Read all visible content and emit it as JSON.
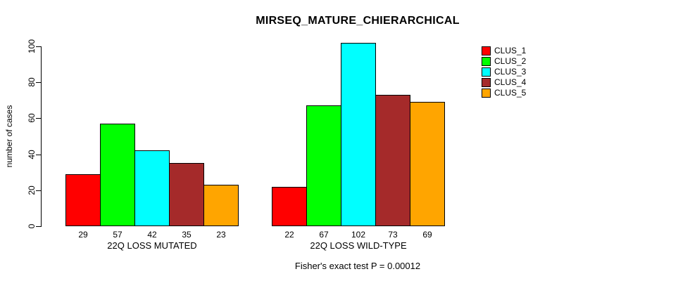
{
  "chart_data": {
    "type": "bar",
    "title": "MIRSEQ_MATURE_CHIERARCHICAL",
    "xlabel": "",
    "ylabel": "number of cases",
    "ylim": [
      0,
      100
    ],
    "yticks": [
      0,
      20,
      40,
      60,
      80,
      100
    ],
    "grid": false,
    "legend_position": "right",
    "categories": [
      "22Q LOSS MUTATED",
      "22Q LOSS WILD-TYPE"
    ],
    "series": [
      {
        "name": "CLUS_1",
        "color": "#FF0000",
        "values": [
          29,
          22
        ]
      },
      {
        "name": "CLUS_2",
        "color": "#00FF00",
        "values": [
          57,
          67
        ]
      },
      {
        "name": "CLUS_3",
        "color": "#00FFFF",
        "values": [
          42,
          102
        ]
      },
      {
        "name": "CLUS_4",
        "color": "#A52A2A",
        "values": [
          35,
          73
        ]
      },
      {
        "name": "CLUS_5",
        "color": "#FFA500",
        "values": [
          23,
          69
        ]
      }
    ],
    "bar_value_labels": [
      [
        29,
        57,
        42,
        35,
        23
      ],
      [
        22,
        67,
        102,
        73,
        69
      ]
    ],
    "annotation": "Fisher's exact test P = 0.00012"
  }
}
